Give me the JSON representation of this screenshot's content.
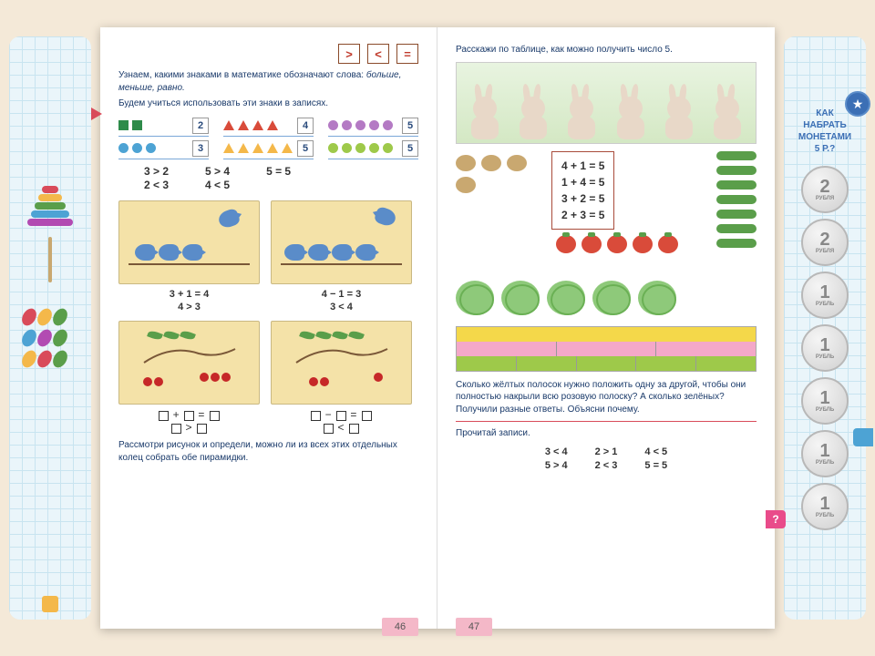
{
  "sidebar_left": {
    "pyramid_colors": [
      "#d94b5a",
      "#f4b84a",
      "#5a9e4a",
      "#4da3d4",
      "#b24bb2"
    ],
    "bead_colors": [
      "#d94b5a",
      "#f4b84a",
      "#5a9e4a",
      "#4da3d4",
      "#b24bb2",
      "#5a9e4a",
      "#f4b84a",
      "#d94b5a",
      "#5a9e4a"
    ]
  },
  "sidebar_right": {
    "title_lines": [
      "КАК",
      "НАБРАТЬ",
      "МОНЕТАМИ",
      "5 Р.?"
    ],
    "coins": [
      {
        "val": "2",
        "lbl": "РУБЛЯ"
      },
      {
        "val": "2",
        "lbl": "РУБЛЯ"
      },
      {
        "val": "1",
        "lbl": "РУБЛЬ"
      },
      {
        "val": "1",
        "lbl": "РУБЛЬ"
      },
      {
        "val": "1",
        "lbl": "РУБЛЬ"
      },
      {
        "val": "1",
        "lbl": "РУБЛЬ"
      },
      {
        "val": "1",
        "lbl": "РУБЛЬ"
      }
    ]
  },
  "left_page": {
    "signs": [
      ">",
      "<",
      "="
    ],
    "intro1": "Узнаем, какими знаками в математике обозначают слова: ",
    "intro_em": "больше, меньше, равно.",
    "intro2": "Будем учиться использовать эти знаки в записях.",
    "row1": [
      {
        "shapes": [
          {
            "t": "sq",
            "c": "#2e8b4a"
          },
          {
            "t": "sq",
            "c": "#2e8b4a"
          }
        ],
        "n": "2"
      },
      {
        "shapes": [
          {
            "t": "tri",
            "c": "#d94b3a"
          },
          {
            "t": "tri",
            "c": "#d94b3a"
          },
          {
            "t": "tri",
            "c": "#d94b3a"
          },
          {
            "t": "tri",
            "c": "#d94b3a"
          }
        ],
        "n": "4"
      },
      {
        "shapes": [
          {
            "t": "cir",
            "c": "#b47ac4"
          },
          {
            "t": "cir",
            "c": "#b47ac4"
          },
          {
            "t": "cir",
            "c": "#b47ac4"
          },
          {
            "t": "cir",
            "c": "#b47ac4"
          },
          {
            "t": "cir",
            "c": "#b47ac4"
          }
        ],
        "n": "5"
      }
    ],
    "row2": [
      {
        "shapes": [
          {
            "t": "cir",
            "c": "#4da3d4"
          },
          {
            "t": "cir",
            "c": "#4da3d4"
          },
          {
            "t": "cir",
            "c": "#4da3d4"
          }
        ],
        "n": "3"
      },
      {
        "shapes": [
          {
            "t": "tri",
            "c": "#f4b84a"
          },
          {
            "t": "tri",
            "c": "#f4b84a"
          },
          {
            "t": "tri",
            "c": "#f4b84a"
          },
          {
            "t": "tri",
            "c": "#f4b84a"
          },
          {
            "t": "tri",
            "c": "#f4b84a"
          }
        ],
        "n": "5"
      },
      {
        "shapes": [
          {
            "t": "cir",
            "c": "#9ec94a"
          },
          {
            "t": "cir",
            "c": "#9ec94a"
          },
          {
            "t": "cir",
            "c": "#9ec94a"
          },
          {
            "t": "cir",
            "c": "#9ec94a"
          },
          {
            "t": "cir",
            "c": "#9ec94a"
          }
        ],
        "n": "5"
      }
    ],
    "comp": [
      [
        "3 > 2",
        "2 < 3"
      ],
      [
        "5 > 4",
        "4 < 5"
      ],
      [
        "5 = 5"
      ]
    ],
    "birds_eq": [
      [
        "3 + 1 = 4",
        "4 > 3"
      ],
      [
        "4 − 1 = 3",
        "3 < 4"
      ]
    ],
    "bottom": "Рассмотри рисунок и определи, можно ли из всех этих отдельных колец собрать обе пирамидки.",
    "page_num": "46"
  },
  "right_page": {
    "top": "Расскажи по таблице, как можно получить число 5.",
    "eq_table": [
      "4 + 1 = 5",
      "1 + 4 = 5",
      "3 + 2 = 5",
      "2 + 3 = 5"
    ],
    "strips": [
      {
        "color": "#f4d84a",
        "segs": 1
      },
      {
        "color": "#f4a8c8",
        "segs": 3
      },
      {
        "color": "#9ec94a",
        "segs": 5
      }
    ],
    "mid": "Сколько жёлтых полосок нужно положить одну за другой, чтобы они полностью накрыли всю розовую полоску? А сколько зелёных? Получили разные ответы. Объясни почему.",
    "read_label": "Прочитай записи.",
    "final": [
      [
        "3 < 4",
        "5 > 4"
      ],
      [
        "2 > 1",
        "2 < 3"
      ],
      [
        "4 < 5",
        "5 = 5"
      ]
    ],
    "page_num": "47"
  }
}
